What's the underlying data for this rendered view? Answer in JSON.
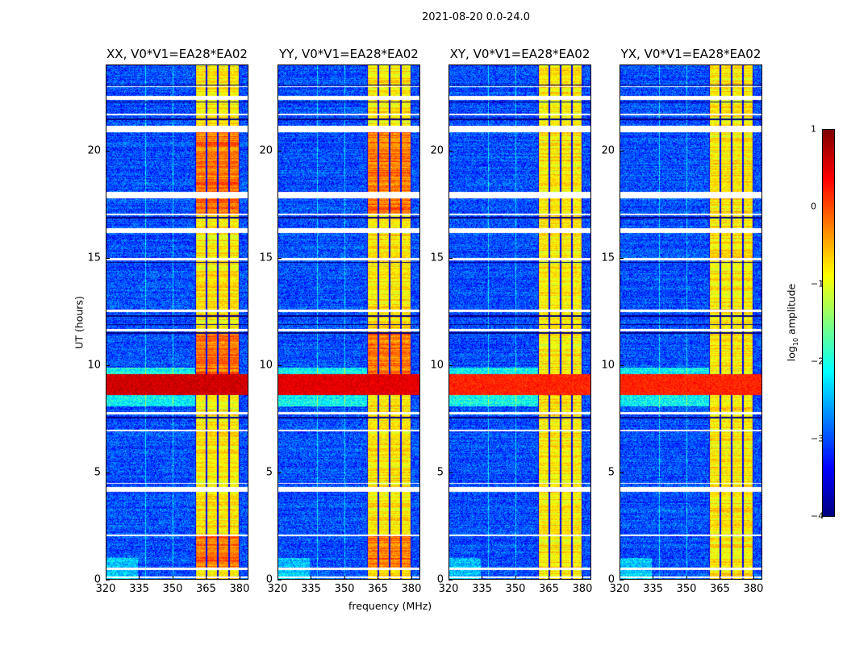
{
  "chart_data": {
    "type": "heatmap",
    "title": "2021-08-20 0.0-24.0",
    "xlabel": "frequency (MHz)",
    "ylabel": "UT (hours)",
    "xlim": [
      320,
      384
    ],
    "ylim": [
      0,
      24
    ],
    "xticks": [
      "320",
      "335",
      "350",
      "365",
      "380"
    ],
    "yticks": [
      "0",
      "5",
      "10",
      "15",
      "20"
    ],
    "panels": [
      {
        "title": "XX, V0*V1=EA28*EA02",
        "rfi_level": 0.6
      },
      {
        "title": "YY, V0*V1=EA28*EA02",
        "rfi_level": 0.5
      },
      {
        "title": "XY, V0*V1=EA28*EA02",
        "rfi_level": 0.2
      },
      {
        "title": "YX, V0*V1=EA28*EA02",
        "rfi_level": 0.2
      }
    ],
    "colorbar": {
      "label": "log10 amplitude",
      "range": [
        -4,
        1
      ],
      "ticks": [
        "1",
        "0",
        "−1",
        "−2",
        "−3",
        "−4"
      ],
      "colormap": "jet"
    },
    "model": {
      "background_log_amp": -3,
      "bright_band_mhz": [
        360,
        380
      ],
      "band_log_amp": -0.8,
      "subband_edges_mhz": [
        360,
        365,
        370.4,
        375.4,
        380
      ],
      "rfi_event_hours": [
        8.6,
        9.6
      ],
      "flagged_hours": [
        [
          0.05,
          0.15
        ],
        [
          0.45,
          0.55
        ],
        [
          2.0,
          2.1
        ],
        [
          4.1,
          4.3
        ],
        [
          4.45,
          4.5
        ],
        [
          6.9,
          7.0
        ],
        [
          7.7,
          7.8
        ],
        [
          11.6,
          11.7
        ],
        [
          12.5,
          12.6
        ],
        [
          14.9,
          15.0
        ],
        [
          16.2,
          16.4
        ],
        [
          17.0,
          17.1
        ],
        [
          17.8,
          18.1
        ],
        [
          20.9,
          21.2
        ],
        [
          21.7,
          21.75
        ],
        [
          22.4,
          22.6
        ],
        [
          23.0,
          23.05
        ]
      ],
      "dark_hours": [
        7.55,
        11.5,
        11.9,
        12.3,
        14.8,
        16.9,
        21.5,
        22.3,
        23.1
      ]
    }
  }
}
